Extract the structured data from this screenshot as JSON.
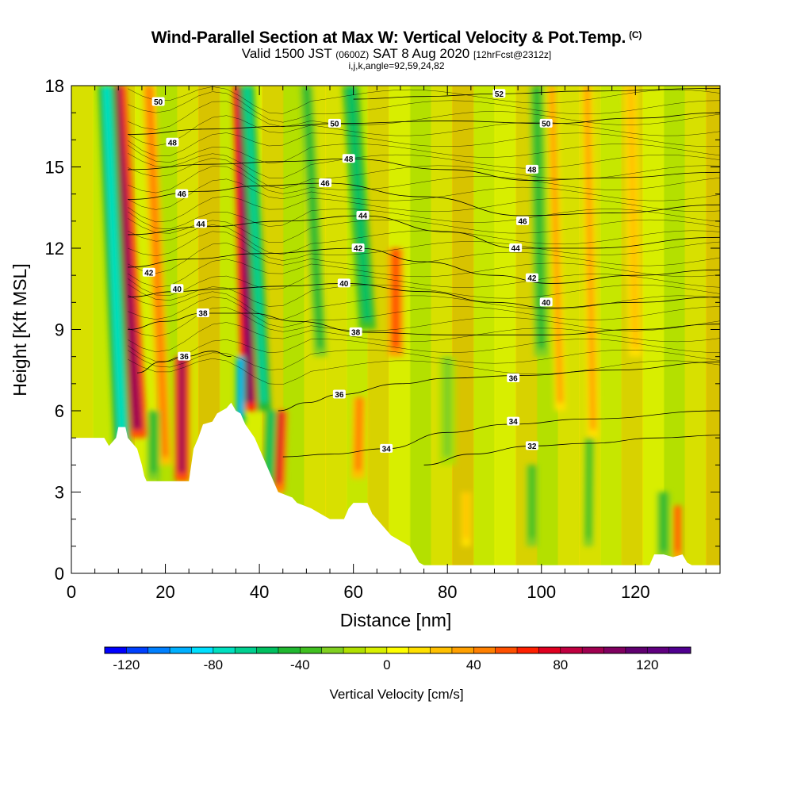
{
  "header": {
    "title": "Wind-Parallel Section at Max W: Vertical Velocity & Pot.Temp.",
    "copyright_mark": "(C)",
    "valid_main": "Valid 1500 JST",
    "valid_zulu": "(0600Z)",
    "valid_date": "SAT 8 Aug 2020",
    "forecast_tag": "[12hrFcst@2312z]",
    "section_params": "i,j,k,angle=92,59,24,82"
  },
  "chart_data": {
    "type": "heatmap",
    "title": "Wind-Parallel Section at Max W: Vertical Velocity & Pot.Temp.",
    "xlabel": "Distance [nm]",
    "ylabel": "Height [Kft MSL]",
    "xlim": [
      0,
      138
    ],
    "ylim": [
      0,
      18
    ],
    "x_ticks": [
      0,
      20,
      40,
      60,
      80,
      100,
      120
    ],
    "y_ticks": [
      0,
      3,
      6,
      9,
      12,
      15,
      18
    ],
    "x_minor_step": 5,
    "y_minor_step": 1,
    "colorbar": {
      "label": "Vertical Velocity [cm/s]",
      "min": -130,
      "max": 140,
      "step": 10,
      "tick_values": [
        -120,
        -80,
        -40,
        0,
        40,
        80,
        120
      ],
      "tick_labels": [
        "-120",
        "-80",
        "-40",
        "0",
        "40",
        "80",
        "120"
      ],
      "colors": [
        "#0000ff",
        "#0040ff",
        "#0080ff",
        "#00b0ff",
        "#00e0ff",
        "#00e0c0",
        "#00d090",
        "#00c060",
        "#20b830",
        "#40c020",
        "#80d020",
        "#b0e000",
        "#d8f000",
        "#ffff00",
        "#ffe000",
        "#ffc000",
        "#ffa000",
        "#ff8000",
        "#ff5000",
        "#ff2000",
        "#e00020",
        "#c00040",
        "#a00050",
        "#800060",
        "#600070",
        "#600080",
        "#500090"
      ]
    },
    "terrain_kft": [
      [
        0,
        5.0
      ],
      [
        7,
        5.0
      ],
      [
        8,
        4.7
      ],
      [
        9.5,
        5.0
      ],
      [
        10,
        5.4
      ],
      [
        11.5,
        5.4
      ],
      [
        12,
        5.0
      ],
      [
        14,
        4.6
      ],
      [
        15,
        4.0
      ],
      [
        15.5,
        3.6
      ],
      [
        16,
        3.4
      ],
      [
        25,
        3.4
      ],
      [
        25.5,
        4.0
      ],
      [
        26,
        4.6
      ],
      [
        27,
        5.0
      ],
      [
        28,
        5.5
      ],
      [
        30,
        5.6
      ],
      [
        31,
        5.9
      ],
      [
        33,
        6.1
      ],
      [
        34,
        6.3
      ],
      [
        35,
        6.0
      ],
      [
        36,
        5.9
      ],
      [
        37,
        5.5
      ],
      [
        39,
        5.0
      ],
      [
        40,
        4.6
      ],
      [
        41,
        4.2
      ],
      [
        42,
        3.8
      ],
      [
        43,
        3.4
      ],
      [
        44,
        3.0
      ],
      [
        47,
        2.8
      ],
      [
        48,
        2.6
      ],
      [
        51,
        2.4
      ],
      [
        53,
        2.2
      ],
      [
        55,
        2.0
      ],
      [
        58,
        2.0
      ],
      [
        59,
        2.4
      ],
      [
        60,
        2.6
      ],
      [
        63,
        2.6
      ],
      [
        64,
        2.2
      ],
      [
        66,
        1.8
      ],
      [
        68,
        1.4
      ],
      [
        70,
        1.2
      ],
      [
        72,
        1.0
      ],
      [
        73,
        0.7
      ],
      [
        74,
        0.4
      ],
      [
        75,
        0.3
      ],
      [
        123,
        0.3
      ],
      [
        124,
        0.7
      ],
      [
        126,
        0.7
      ],
      [
        128,
        0.6
      ],
      [
        130,
        0.7
      ],
      [
        131,
        0.4
      ],
      [
        132,
        0.3
      ],
      [
        138,
        0.3
      ]
    ],
    "vertical_velocity_features": [
      {
        "x": 14,
        "bottom": 5,
        "top": 18,
        "tilt": -0.35,
        "width": 2.2,
        "value": 90
      },
      {
        "x": 11,
        "bottom": 4,
        "top": 18,
        "tilt": -0.25,
        "width": 1.8,
        "value": -75
      },
      {
        "x": 20,
        "bottom": 4,
        "top": 18,
        "tilt": -0.25,
        "width": 1.4,
        "value": 40
      },
      {
        "x": 23.5,
        "bottom": 3.4,
        "top": 8,
        "tilt": 0,
        "width": 1.5,
        "value": 95
      },
      {
        "x": 17.5,
        "bottom": 3.4,
        "top": 6,
        "tilt": 0,
        "width": 1.4,
        "value": -50
      },
      {
        "x": 38,
        "bottom": 6,
        "top": 18,
        "tilt": -0.15,
        "width": 1.8,
        "value": 100
      },
      {
        "x": 41,
        "bottom": 6,
        "top": 18,
        "tilt": -0.3,
        "width": 1.5,
        "value": -70
      },
      {
        "x": 36,
        "bottom": 5.5,
        "top": 8,
        "tilt": 0,
        "width": 1.0,
        "value": -95
      },
      {
        "x": 44,
        "bottom": 3,
        "top": 6,
        "tilt": 0.2,
        "width": 1.4,
        "value": 70
      },
      {
        "x": 42,
        "bottom": 3.2,
        "top": 6,
        "tilt": 0.2,
        "width": 1.2,
        "value": -60
      },
      {
        "x": 53,
        "bottom": 8,
        "top": 18,
        "tilt": -0.3,
        "width": 1.4,
        "value": -50
      },
      {
        "x": 69,
        "bottom": 8,
        "top": 12,
        "tilt": 0,
        "width": 1.6,
        "value": 55
      },
      {
        "x": 63,
        "bottom": 9,
        "top": 18,
        "tilt": -0.4,
        "width": 1.8,
        "value": -55
      },
      {
        "x": 61,
        "bottom": 3.5,
        "top": 6.5,
        "tilt": 0.1,
        "width": 1.4,
        "value": 40
      },
      {
        "x": 80,
        "bottom": 4,
        "top": 8,
        "tilt": 0,
        "width": 1.8,
        "value": -30
      },
      {
        "x": 100,
        "bottom": 8,
        "top": 18,
        "tilt": -0.1,
        "width": 1.5,
        "value": -45
      },
      {
        "x": 104,
        "bottom": 6,
        "top": 18,
        "tilt": -0.15,
        "width": 1.2,
        "value": 30
      },
      {
        "x": 110,
        "bottom": 1,
        "top": 5,
        "tilt": 0.05,
        "width": 1.0,
        "value": -40
      },
      {
        "x": 111,
        "bottom": 5,
        "top": 18,
        "tilt": -0.1,
        "width": 1.2,
        "value": 30
      },
      {
        "x": 120,
        "bottom": 8,
        "top": 18,
        "tilt": -0.1,
        "width": 1.4,
        "value": 25
      },
      {
        "x": 126,
        "bottom": 0.5,
        "top": 3,
        "tilt": 0,
        "width": 1.4,
        "value": -50
      },
      {
        "x": 129,
        "bottom": 0.5,
        "top": 2.5,
        "tilt": 0,
        "width": 1.0,
        "value": 55
      },
      {
        "x": 98,
        "bottom": 1,
        "top": 4,
        "tilt": 0,
        "width": 1.2,
        "value": -35
      },
      {
        "x": 84,
        "bottom": 1,
        "top": 3,
        "tilt": 0,
        "width": 1.0,
        "value": 20
      }
    ],
    "isentropes": [
      {
        "value": 32,
        "label": "32",
        "label_at": [
          98,
          4.7
        ],
        "points": [
          [
            75,
            4.0
          ],
          [
            85,
            4.4
          ],
          [
            98,
            4.7
          ],
          [
            110,
            4.8
          ],
          [
            125,
            5.0
          ],
          [
            138,
            5.1
          ]
        ]
      },
      {
        "value": 34,
        "label": "34",
        "label_at": [
          67,
          4.6
        ],
        "points": [
          [
            45,
            4.3
          ],
          [
            55,
            4.4
          ],
          [
            67,
            4.6
          ],
          [
            80,
            5.2
          ],
          [
            93,
            5.5
          ],
          [
            110,
            5.7
          ],
          [
            138,
            6.0
          ]
        ]
      },
      {
        "value": 36,
        "label": "36",
        "label_at": [
          57,
          6.6
        ],
        "points": [
          [
            44,
            6.0
          ],
          [
            50,
            6.3
          ],
          [
            57,
            6.6
          ],
          [
            70,
            7.0
          ],
          [
            80,
            7.2
          ],
          [
            95,
            7.3
          ],
          [
            115,
            7.5
          ],
          [
            138,
            7.8
          ]
        ]
      },
      {
        "value": 36,
        "label": "36",
        "label_at": [
          24,
          8.0
        ],
        "points": [
          [
            14,
            7.4
          ],
          [
            19,
            7.8
          ],
          [
            24,
            8.0
          ],
          [
            30,
            8.2
          ],
          [
            34,
            8.0
          ]
        ]
      },
      {
        "value": 38,
        "label": "38",
        "label_at": [
          28,
          9.6
        ],
        "points": [
          [
            12,
            9.0
          ],
          [
            20,
            9.3
          ],
          [
            28,
            9.6
          ],
          [
            38,
            9.6
          ],
          [
            48,
            9.3
          ],
          [
            62,
            8.9
          ],
          [
            80,
            8.8
          ],
          [
            102,
            8.8
          ],
          [
            120,
            9.0
          ],
          [
            138,
            9.2
          ]
        ]
      },
      {
        "value": 40,
        "label": "40",
        "label_at": [
          58,
          10.7
        ],
        "points": [
          [
            12,
            10.2
          ],
          [
            22,
            10.4
          ],
          [
            32,
            10.5
          ],
          [
            45,
            10.6
          ],
          [
            58,
            10.7
          ],
          [
            75,
            10.4
          ],
          [
            90,
            10.0
          ],
          [
            102,
            9.8
          ],
          [
            120,
            10.0
          ],
          [
            138,
            10.2
          ]
        ]
      },
      {
        "value": 42,
        "label": "42",
        "label_at": [
          61,
          12.0
        ],
        "points": [
          [
            12,
            11.3
          ],
          [
            25,
            11.6
          ],
          [
            40,
            11.8
          ],
          [
            61,
            12.0
          ],
          [
            75,
            11.5
          ],
          [
            90,
            11.0
          ],
          [
            102,
            10.7
          ],
          [
            120,
            11.0
          ],
          [
            138,
            11.2
          ]
        ]
      },
      {
        "value": 44,
        "label": "44",
        "label_at": [
          62,
          13.2
        ],
        "points": [
          [
            12,
            12.5
          ],
          [
            29,
            12.8
          ],
          [
            45,
            13.0
          ],
          [
            62,
            13.2
          ],
          [
            80,
            12.6
          ],
          [
            95,
            12.0
          ],
          [
            110,
            12.0
          ],
          [
            138,
            12.4
          ]
        ]
      },
      {
        "value": 46,
        "label": "46",
        "label_at": [
          54,
          14.4
        ],
        "points": [
          [
            12,
            13.8
          ],
          [
            28,
            14.1
          ],
          [
            40,
            14.3
          ],
          [
            54,
            14.4
          ],
          [
            75,
            13.9
          ],
          [
            96,
            13.2
          ],
          [
            115,
            13.3
          ],
          [
            138,
            13.6
          ]
        ]
      },
      {
        "value": 48,
        "label": "48",
        "label_at": [
          59,
          15.3
        ],
        "points": [
          [
            12,
            14.9
          ],
          [
            30,
            15.1
          ],
          [
            45,
            15.2
          ],
          [
            59,
            15.3
          ],
          [
            80,
            14.9
          ],
          [
            98,
            14.5
          ],
          [
            115,
            14.6
          ],
          [
            138,
            14.8
          ]
        ]
      },
      {
        "value": 50,
        "label": "50",
        "label_at": [
          56,
          16.6
        ],
        "points": [
          [
            12,
            16.2
          ],
          [
            30,
            16.4
          ],
          [
            45,
            16.5
          ],
          [
            56,
            16.6
          ],
          [
            80,
            16.7
          ],
          [
            102,
            16.6
          ],
          [
            120,
            16.8
          ],
          [
            138,
            17.0
          ]
        ]
      },
      {
        "value": 52,
        "label": "52",
        "label_at": [
          91,
          17.7
        ],
        "points": [
          [
            60,
            17.5
          ],
          [
            75,
            17.6
          ],
          [
            91,
            17.7
          ],
          [
            110,
            17.8
          ],
          [
            138,
            17.9
          ]
        ]
      }
    ],
    "extra_isentrope_labels": [
      {
        "label": "50",
        "at": [
          18.5,
          17.4
        ]
      },
      {
        "label": "48",
        "at": [
          21.5,
          15.9
        ]
      },
      {
        "label": "46",
        "at": [
          23.5,
          14.0
        ]
      },
      {
        "label": "44",
        "at": [
          27.5,
          12.9
        ]
      },
      {
        "label": "42",
        "at": [
          16.5,
          11.1
        ]
      },
      {
        "label": "40",
        "at": [
          22.5,
          10.5
        ]
      },
      {
        "label": "48",
        "at": [
          98,
          14.9
        ]
      },
      {
        "label": "46",
        "at": [
          96,
          13.0
        ]
      },
      {
        "label": "44",
        "at": [
          94.5,
          12.0
        ]
      },
      {
        "label": "42",
        "at": [
          98,
          10.9
        ]
      },
      {
        "label": "40",
        "at": [
          101,
          10.0
        ]
      },
      {
        "label": "38",
        "at": [
          60.5,
          8.9
        ]
      },
      {
        "label": "36",
        "at": [
          94,
          7.2
        ]
      },
      {
        "label": "34",
        "at": [
          94,
          5.6
        ]
      },
      {
        "label": "50",
        "at": [
          101,
          16.6
        ]
      }
    ]
  }
}
